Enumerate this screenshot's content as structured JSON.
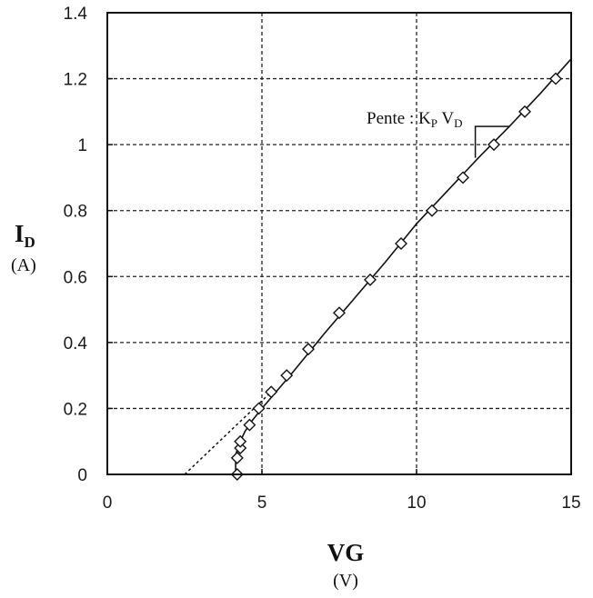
{
  "chart_data": {
    "type": "scatter",
    "xlabel": "VG",
    "xunit": "(V)",
    "ylabel": "I",
    "ylabel_sub": "D",
    "yunit": "(A)",
    "xlim": [
      0,
      15
    ],
    "ylim": [
      0,
      1.4
    ],
    "xticks": [
      "0",
      "5",
      "10",
      "15"
    ],
    "yticks": [
      "0",
      "0.2",
      "0.4",
      "0.6",
      "0.8",
      "1",
      "1.2",
      "1.4"
    ],
    "xtick_values": [
      0,
      5,
      10,
      15
    ],
    "ytick_values": [
      0,
      0.2,
      0.4,
      0.6,
      0.8,
      1.0,
      1.2,
      1.4
    ],
    "grid": true,
    "series": [
      {
        "marker": "diamond",
        "x": [
          4.2,
          4.2,
          4.3,
          4.3,
          4.6,
          4.9,
          5.3,
          5.8,
          6.5,
          7.5,
          8.5,
          9.5,
          10.5,
          11.5,
          12.5,
          13.5,
          14.5
        ],
        "y": [
          0.0,
          0.05,
          0.08,
          0.1,
          0.15,
          0.2,
          0.25,
          0.3,
          0.38,
          0.49,
          0.59,
          0.7,
          0.8,
          0.9,
          1.0,
          1.1,
          1.2
        ]
      }
    ],
    "fit_line": {
      "style": "solid",
      "x": [
        4.15,
        4.15,
        4.3,
        4.45,
        4.7,
        5.0,
        5.5,
        6.0,
        7.0,
        8.0,
        9.0,
        10.0,
        11.0,
        12.0,
        13.0,
        14.0,
        15.0
      ],
      "y": [
        0.0,
        0.06,
        0.1,
        0.13,
        0.165,
        0.2,
        0.255,
        0.31,
        0.425,
        0.535,
        0.645,
        0.76,
        0.86,
        0.96,
        1.055,
        1.155,
        1.26
      ]
    },
    "extrapolation": {
      "style": "dashed",
      "x": [
        2.5,
        5.3
      ],
      "y": [
        0.0,
        0.25
      ]
    },
    "annotation": {
      "text": "Pente : K",
      "sub1": "P",
      "mid": " V",
      "sub2": "D",
      "slope_triangle": {
        "x1": 11.9,
        "x2": 13.0,
        "y_top": 1.055,
        "y_bottom": 0.96
      }
    }
  }
}
